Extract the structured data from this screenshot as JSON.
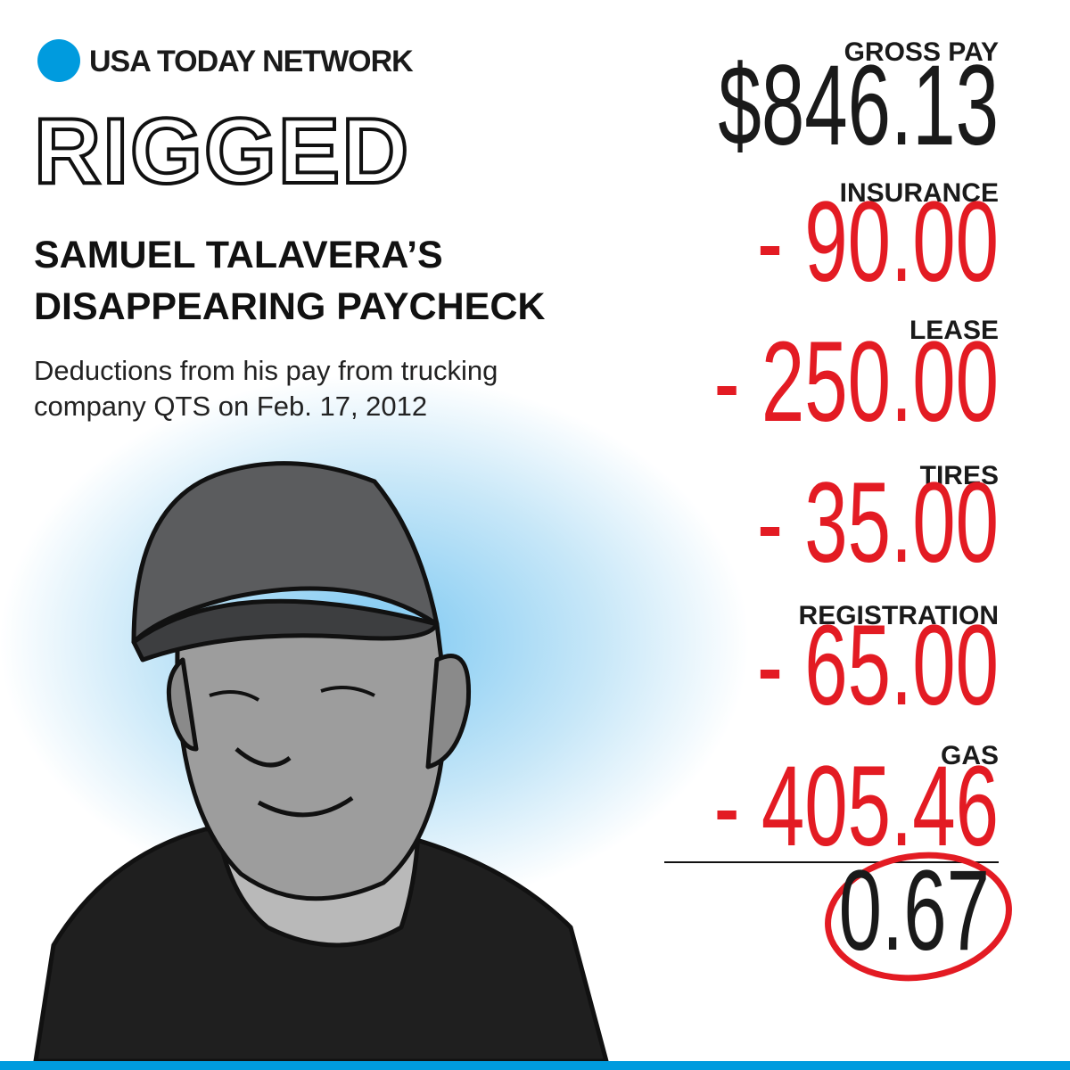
{
  "header": {
    "brand": "USA TODAY NETWORK",
    "series": "RIGGED",
    "title_lines": [
      "SAMUEL TALAVERA’S",
      "DISAPPEARING PAYCHECK"
    ],
    "subtitle_lines": [
      "Deductions from his pay from trucking",
      "company QTS on Feb. 17, 2012"
    ]
  },
  "paycheck": {
    "gross": {
      "label": "GROSS PAY",
      "amount": "$846.13"
    },
    "deductions": [
      {
        "label": "INSURANCE",
        "amount": "- 90.00"
      },
      {
        "label": "LEASE",
        "amount": "- 250.00"
      },
      {
        "label": "TIRES",
        "amount": "- 35.00"
      },
      {
        "label": "REGISTRATION",
        "amount": "- 65.00"
      },
      {
        "label": "GAS",
        "amount": "- 405.46"
      }
    ],
    "net": "0.67"
  }
}
